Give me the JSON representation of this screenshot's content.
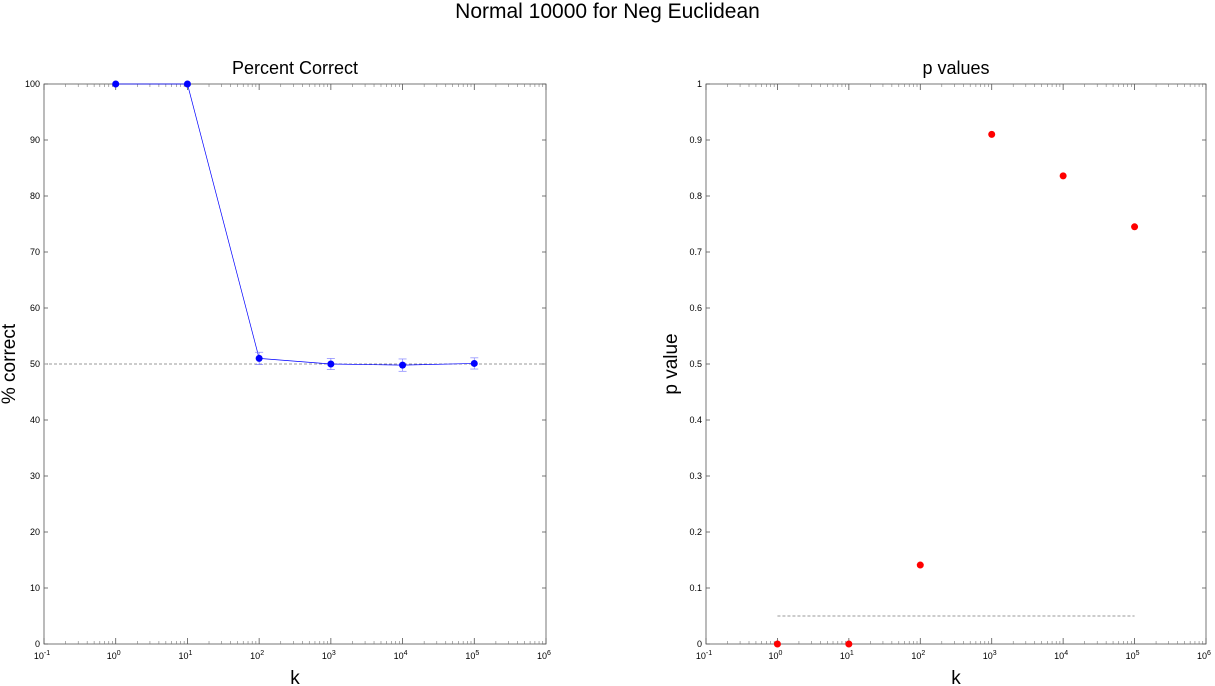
{
  "figure": {
    "title": "Normal 10000 for Neg Euclidean"
  },
  "chart_data": [
    {
      "type": "line",
      "title": "Percent Correct",
      "xlabel": "k",
      "ylabel": "% correct",
      "xscale": "log",
      "xlim": [
        0.1,
        1000000
      ],
      "ylim": [
        0,
        100
      ],
      "yticks": [
        0,
        10,
        20,
        30,
        40,
        50,
        60,
        70,
        80,
        90,
        100
      ],
      "xtick_exponents": [
        -1,
        0,
        1,
        2,
        3,
        4,
        5,
        6
      ],
      "reference_line": {
        "y": 50,
        "style": "dashed",
        "color": "#9a9a9a"
      },
      "grid": false,
      "series": [
        {
          "color": "#0000ff",
          "x": [
            1,
            10,
            100,
            1000,
            10000,
            100000
          ],
          "y": [
            100,
            100,
            51,
            50,
            49.8,
            50.1
          ],
          "error": [
            0,
            0,
            1.1,
            1.0,
            1.1,
            1.0
          ]
        }
      ]
    },
    {
      "type": "scatter",
      "title": "p values",
      "xlabel": "k",
      "ylabel": "p value",
      "xscale": "log",
      "xlim": [
        0.1,
        1000000
      ],
      "ylim": [
        0,
        1
      ],
      "yticks": [
        0,
        0.1,
        0.2,
        0.3,
        0.4,
        0.5,
        0.6,
        0.7,
        0.8,
        0.9,
        1
      ],
      "xtick_exponents": [
        -1,
        0,
        1,
        2,
        3,
        4,
        5,
        6
      ],
      "reference_line": {
        "y": 0.05,
        "x_range": [
          1,
          100000
        ],
        "style": "dashed",
        "color": "#9a9a9a"
      },
      "grid": false,
      "series": [
        {
          "color": "#ff0000",
          "x": [
            1,
            10,
            100,
            1000,
            10000,
            100000
          ],
          "y": [
            0,
            0,
            0.141,
            0.91,
            0.836,
            0.745
          ]
        }
      ]
    }
  ]
}
